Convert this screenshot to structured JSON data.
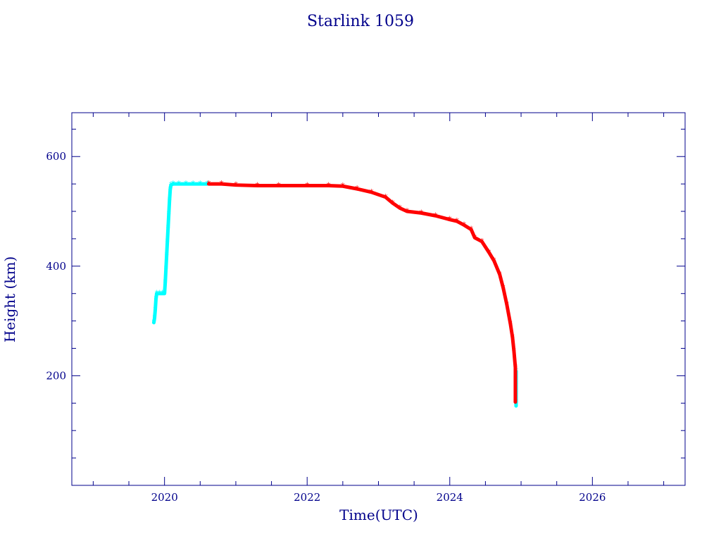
{
  "chart_data": {
    "type": "scatter",
    "title": "Starlink 1059",
    "xlabel": "Time(UTC)",
    "ylabel": "Height (km)",
    "xlim": [
      2018.7,
      2027.3
    ],
    "ylim": [
      0,
      680
    ],
    "x_major_ticks": [
      2020,
      2022,
      2024,
      2026
    ],
    "x_tick_labels": [
      "2020",
      "2022",
      "2024",
      "2026"
    ],
    "y_major_ticks": [
      200,
      400,
      600
    ],
    "y_tick_labels": [
      "200",
      "400",
      "600"
    ],
    "grid": false,
    "colors": {
      "axis": "#00008b",
      "segment_a": "#00ffff",
      "segment_b": "#ff0000"
    },
    "series": [
      {
        "color": "#00ffff",
        "points": [
          [
            2019.85,
            297
          ],
          [
            2019.86,
            305
          ],
          [
            2019.87,
            320
          ],
          [
            2019.88,
            340
          ],
          [
            2019.89,
            350
          ],
          [
            2019.93,
            350
          ],
          [
            2019.97,
            350
          ],
          [
            2020.0,
            350
          ],
          [
            2020.01,
            370
          ],
          [
            2020.02,
            395
          ],
          [
            2020.03,
            420
          ],
          [
            2020.04,
            445
          ],
          [
            2020.05,
            470
          ],
          [
            2020.06,
            495
          ],
          [
            2020.07,
            520
          ],
          [
            2020.08,
            540
          ],
          [
            2020.09,
            548
          ],
          [
            2020.12,
            550
          ],
          [
            2020.2,
            550
          ],
          [
            2020.3,
            550
          ],
          [
            2020.4,
            550
          ],
          [
            2020.5,
            550
          ],
          [
            2020.6,
            550
          ],
          [
            2024.93,
            208
          ],
          [
            2024.93,
            185
          ],
          [
            2024.93,
            167
          ],
          [
            2024.93,
            145
          ]
        ]
      },
      {
        "color": "#ff0000",
        "points": [
          [
            2020.62,
            550
          ],
          [
            2020.8,
            550
          ],
          [
            2021.0,
            548
          ],
          [
            2021.3,
            547
          ],
          [
            2021.6,
            547
          ],
          [
            2022.0,
            547
          ],
          [
            2022.3,
            547
          ],
          [
            2022.5,
            546
          ],
          [
            2022.7,
            541
          ],
          [
            2022.9,
            535
          ],
          [
            2023.1,
            526
          ],
          [
            2023.2,
            515
          ],
          [
            2023.3,
            506
          ],
          [
            2023.4,
            500
          ],
          [
            2023.6,
            497
          ],
          [
            2023.8,
            492
          ],
          [
            2024.0,
            485
          ],
          [
            2024.1,
            482
          ],
          [
            2024.2,
            475
          ],
          [
            2024.3,
            467
          ],
          [
            2024.35,
            452
          ],
          [
            2024.45,
            445
          ],
          [
            2024.55,
            425
          ],
          [
            2024.62,
            410
          ],
          [
            2024.7,
            385
          ],
          [
            2024.75,
            360
          ],
          [
            2024.8,
            330
          ],
          [
            2024.85,
            295
          ],
          [
            2024.88,
            270
          ],
          [
            2024.9,
            245
          ],
          [
            2024.92,
            215
          ],
          [
            2024.92,
            195
          ],
          [
            2024.92,
            152
          ]
        ]
      }
    ]
  }
}
